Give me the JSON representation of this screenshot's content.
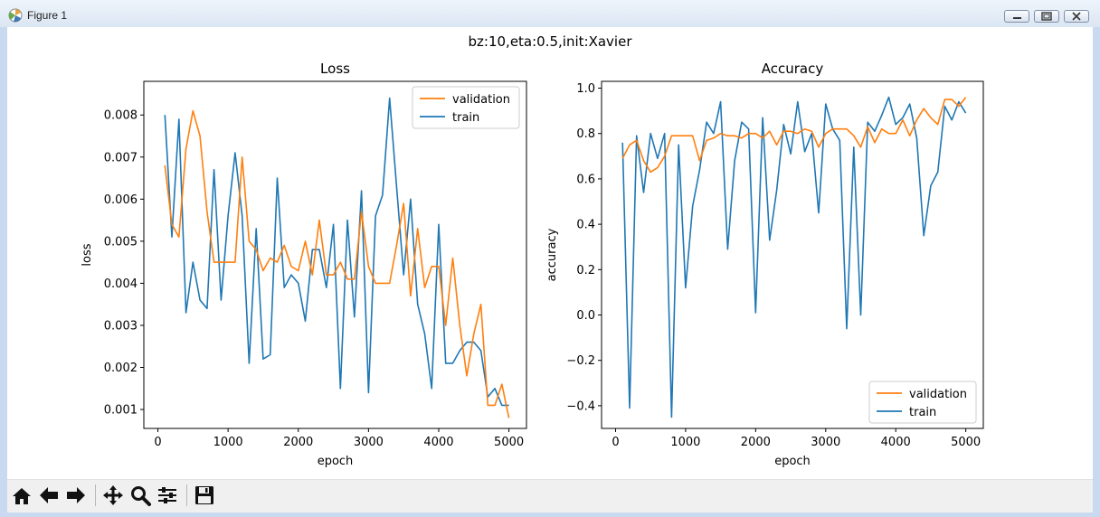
{
  "window": {
    "title": "Figure 1"
  },
  "figure": {
    "suptitle": "bz:10,eta:0.5,init:Xavier"
  },
  "toolbar": {
    "buttons": [
      {
        "name": "home-button",
        "icon": "home-icon"
      },
      {
        "name": "back-button",
        "icon": "arrow-left-icon"
      },
      {
        "name": "forward-button",
        "icon": "arrow-right-icon"
      },
      {
        "name": "pan-button",
        "icon": "move-icon"
      },
      {
        "name": "zoom-button",
        "icon": "magnifier-icon"
      },
      {
        "name": "configure-subplots-button",
        "icon": "sliders-icon"
      },
      {
        "name": "save-button",
        "icon": "floppy-disk-icon"
      }
    ]
  },
  "chart_data": [
    {
      "type": "line",
      "title": "Loss",
      "xlabel": "epoch",
      "ylabel": "loss",
      "xlim": [
        -200,
        5250
      ],
      "ylim": [
        0.00055,
        0.0088
      ],
      "xticks": [
        0,
        1000,
        2000,
        3000,
        4000,
        5000
      ],
      "xtick_labels": [
        "0",
        "1000",
        "2000",
        "3000",
        "4000",
        "5000"
      ],
      "yticks": [
        0.001,
        0.002,
        0.003,
        0.004,
        0.005,
        0.006,
        0.007,
        0.008
      ],
      "ytick_labels": [
        "0.001",
        "0.002",
        "0.003",
        "0.004",
        "0.005",
        "0.006",
        "0.007",
        "0.008"
      ],
      "grid": false,
      "legend_position": "top-right",
      "x": [
        100,
        200,
        300,
        400,
        500,
        600,
        700,
        800,
        900,
        1000,
        1100,
        1200,
        1300,
        1400,
        1500,
        1600,
        1700,
        1800,
        1900,
        2000,
        2100,
        2200,
        2300,
        2400,
        2500,
        2600,
        2700,
        2800,
        2900,
        3000,
        3100,
        3200,
        3300,
        3400,
        3500,
        3600,
        3700,
        3800,
        3900,
        4000,
        4100,
        4200,
        4300,
        4400,
        4500,
        4600,
        4700,
        4800,
        4900,
        5000
      ],
      "series": [
        {
          "name": "validation",
          "color": "#ff7f0e",
          "values": [
            0.0068,
            0.0054,
            0.0051,
            0.0072,
            0.0081,
            0.0075,
            0.0057,
            0.0045,
            0.0045,
            0.0045,
            0.0045,
            0.007,
            0.005,
            0.0048,
            0.0043,
            0.0046,
            0.0045,
            0.0049,
            0.0044,
            0.0043,
            0.005,
            0.0042,
            0.0055,
            0.0042,
            0.0042,
            0.0045,
            0.0041,
            0.0041,
            0.0057,
            0.0044,
            0.004,
            0.004,
            0.004,
            0.0049,
            0.0059,
            0.0037,
            0.0053,
            0.0039,
            0.0044,
            0.0044,
            0.003,
            0.0046,
            0.003,
            0.0018,
            0.0028,
            0.0035,
            0.0011,
            0.0011,
            0.0016,
            0.0008
          ]
        },
        {
          "name": "train",
          "color": "#1f77b4",
          "values": [
            0.008,
            0.0051,
            0.0079,
            0.0033,
            0.0045,
            0.0036,
            0.0034,
            0.0067,
            0.0036,
            0.0056,
            0.0071,
            0.0056,
            0.0021,
            0.0053,
            0.0022,
            0.0023,
            0.0065,
            0.0039,
            0.0042,
            0.004,
            0.0031,
            0.0048,
            0.0048,
            0.0039,
            0.0054,
            0.0015,
            0.0055,
            0.0032,
            0.0062,
            0.0014,
            0.0056,
            0.0061,
            0.0084,
            0.0063,
            0.0042,
            0.006,
            0.0035,
            0.0028,
            0.0015,
            0.0054,
            0.0021,
            0.0021,
            0.0024,
            0.0026,
            0.0026,
            0.0024,
            0.0013,
            0.0015,
            0.0011,
            0.0011
          ]
        }
      ]
    },
    {
      "type": "line",
      "title": "Accuracy",
      "xlabel": "epoch",
      "ylabel": "accuracy",
      "xlim": [
        -200,
        5250
      ],
      "ylim": [
        -0.5,
        1.03
      ],
      "xticks": [
        0,
        1000,
        2000,
        3000,
        4000,
        5000
      ],
      "xtick_labels": [
        "0",
        "1000",
        "2000",
        "3000",
        "4000",
        "5000"
      ],
      "yticks": [
        -0.4,
        -0.2,
        0.0,
        0.2,
        0.4,
        0.6,
        0.8,
        1.0
      ],
      "ytick_labels": [
        "−0.4",
        "−0.2",
        "0.0",
        "0.2",
        "0.4",
        "0.6",
        "0.8",
        "1.0"
      ],
      "grid": false,
      "legend_position": "bottom-right",
      "x": [
        100,
        200,
        300,
        400,
        500,
        600,
        700,
        800,
        900,
        1000,
        1100,
        1200,
        1300,
        1400,
        1500,
        1600,
        1700,
        1800,
        1900,
        2000,
        2100,
        2200,
        2300,
        2400,
        2500,
        2600,
        2700,
        2800,
        2900,
        3000,
        3100,
        3200,
        3300,
        3400,
        3500,
        3600,
        3700,
        3800,
        3900,
        4000,
        4100,
        4200,
        4300,
        4400,
        4500,
        4600,
        4700,
        4800,
        4900,
        5000
      ],
      "series": [
        {
          "name": "validation",
          "color": "#ff7f0e",
          "values": [
            0.69,
            0.75,
            0.77,
            0.68,
            0.63,
            0.65,
            0.7,
            0.79,
            0.79,
            0.79,
            0.79,
            0.68,
            0.77,
            0.78,
            0.8,
            0.79,
            0.79,
            0.78,
            0.8,
            0.8,
            0.78,
            0.81,
            0.75,
            0.81,
            0.81,
            0.8,
            0.82,
            0.81,
            0.74,
            0.8,
            0.82,
            0.82,
            0.82,
            0.79,
            0.74,
            0.83,
            0.76,
            0.82,
            0.8,
            0.8,
            0.86,
            0.79,
            0.86,
            0.91,
            0.87,
            0.84,
            0.95,
            0.95,
            0.92,
            0.96
          ]
        },
        {
          "name": "train",
          "color": "#1f77b4",
          "values": [
            0.76,
            -0.41,
            0.79,
            0.54,
            0.8,
            0.69,
            0.8,
            -0.45,
            0.75,
            0.12,
            0.48,
            0.64,
            0.85,
            0.8,
            0.94,
            0.29,
            0.68,
            0.85,
            0.82,
            0.01,
            0.87,
            0.33,
            0.55,
            0.84,
            0.71,
            0.94,
            0.72,
            0.8,
            0.45,
            0.93,
            0.82,
            0.77,
            -0.06,
            0.74,
            0.0,
            0.85,
            0.81,
            0.88,
            0.96,
            0.84,
            0.87,
            0.93,
            0.78,
            0.35,
            0.57,
            0.63,
            0.92,
            0.86,
            0.94,
            0.89
          ]
        }
      ]
    }
  ]
}
